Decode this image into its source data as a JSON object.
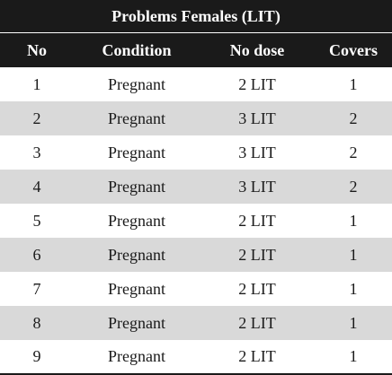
{
  "table": {
    "title": "Problems Females (LIT)",
    "headers": [
      "No",
      "Condition",
      "No dose",
      "Covers"
    ],
    "rows": [
      [
        "1",
        "Pregnant",
        "2 LIT",
        "1"
      ],
      [
        "2",
        "Pregnant",
        "3 LIT",
        "2"
      ],
      [
        "3",
        "Pregnant",
        "3 LIT",
        "2"
      ],
      [
        "4",
        "Pregnant",
        "3 LIT",
        "2"
      ],
      [
        "5",
        "Pregnant",
        "2 LIT",
        "1"
      ],
      [
        "6",
        "Pregnant",
        "2 LIT",
        "1"
      ],
      [
        "7",
        "Pregnant",
        "2 LIT",
        "1"
      ],
      [
        "8",
        "Pregnant",
        "2 LIT",
        "1"
      ],
      [
        "9",
        "Pregnant",
        "2 LIT",
        "1"
      ]
    ]
  },
  "colors": {
    "header_bg": "#1a1a1a",
    "header_text": "#ffffff",
    "alt_row_bg": "#d9d9d9",
    "row_bg": "#ffffff"
  }
}
